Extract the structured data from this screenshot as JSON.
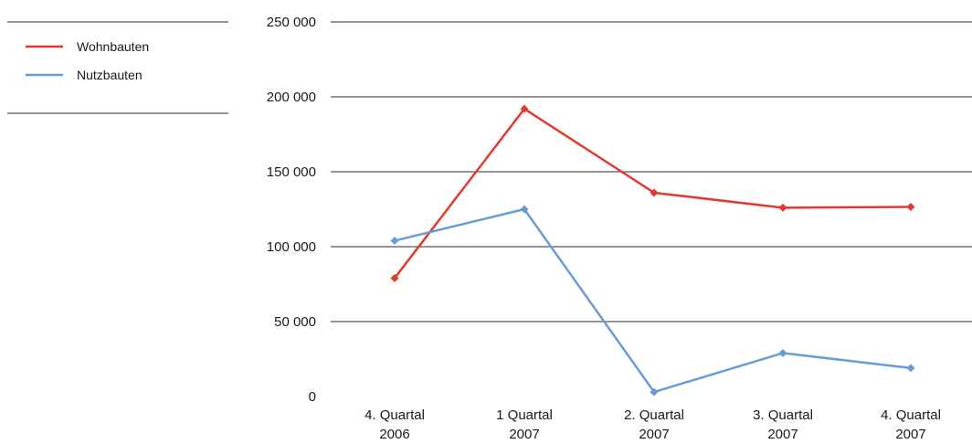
{
  "chart_data": {
    "type": "line",
    "categories": [
      [
        "4. Quartal",
        "2006"
      ],
      [
        "1 Quartal",
        "2007"
      ],
      [
        "2. Quartal",
        "2007"
      ],
      [
        "3. Quartal",
        "2007"
      ],
      [
        "4. Quartal",
        "2007"
      ]
    ],
    "yticks": [
      "0",
      "50 000",
      "100 000",
      "150 000",
      "200 000",
      "250 000"
    ],
    "ylim": [
      0,
      250000
    ],
    "ytick_step": 50000,
    "grid": true,
    "legend_position": "top-left",
    "series": [
      {
        "name": "Wohnbauten",
        "color": "#e03a2f",
        "values": [
          79000,
          192000,
          136000,
          126000,
          126500
        ]
      },
      {
        "name": "Nutzbauten",
        "color": "#6a9bd4",
        "values": [
          104000,
          125000,
          3000,
          29000,
          19000
        ]
      }
    ]
  }
}
